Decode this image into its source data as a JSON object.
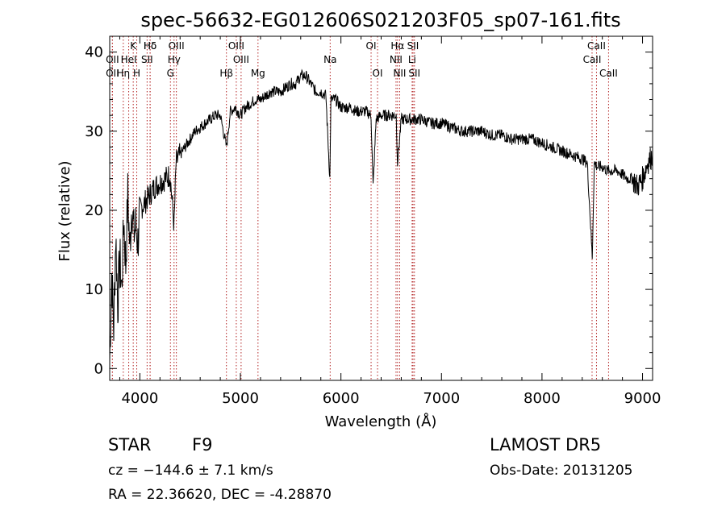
{
  "chart_data": {
    "type": "line",
    "title": "spec-56632-EG012606S021203F05_sp07-161.fits",
    "xlabel": "Wavelength (Å)",
    "ylabel": "Flux (relative)",
    "xlim": [
      3700,
      9100
    ],
    "ylim": [
      -1.5,
      42
    ],
    "xticks": [
      4000,
      5000,
      6000,
      7000,
      8000,
      9000
    ],
    "yticks": [
      0,
      10,
      20,
      30,
      40
    ],
    "grid": false,
    "line_color": "#000000",
    "marker_color": "#b22222",
    "series": [
      {
        "x": [
          3700,
          3720,
          3740,
          3760,
          3780,
          3800,
          3820,
          3840,
          3860,
          3880,
          3900,
          3920,
          3940,
          3960,
          3980,
          4000,
          4050,
          4100,
          4150,
          4200,
          4250,
          4300,
          4340,
          4360,
          4400,
          4450,
          4500,
          4550,
          4600,
          4650,
          4700,
          4750,
          4800,
          4861,
          4900,
          4950,
          5000,
          5050,
          5100,
          5150,
          5200,
          5250,
          5300,
          5350,
          5400,
          5450,
          5500,
          5550,
          5600,
          5650,
          5700,
          5750,
          5800,
          5850,
          5890,
          5900,
          5950,
          6000,
          6050,
          6100,
          6150,
          6200,
          6250,
          6300,
          6320,
          6350,
          6400,
          6450,
          6500,
          6550,
          6563,
          6600,
          6650,
          6700,
          6750,
          6800,
          6900,
          7000,
          7100,
          7200,
          7300,
          7400,
          7500,
          7600,
          7700,
          7800,
          7900,
          8000,
          8100,
          8200,
          8300,
          8400,
          8450,
          8480,
          8500,
          8520,
          8550,
          8600,
          8650,
          8700,
          8750,
          8800,
          8850,
          8900,
          8950,
          9000,
          9050,
          9100
        ],
        "y": [
          1,
          12,
          5,
          17,
          8,
          14,
          10,
          19,
          13,
          22,
          15,
          21,
          17,
          18,
          16,
          20,
          21,
          22,
          23,
          23.5,
          24,
          24.5,
          18,
          26,
          27,
          28,
          29,
          30,
          30.5,
          31,
          31.5,
          32,
          32,
          28,
          32.5,
          33,
          32,
          33,
          33.5,
          34,
          34,
          34.5,
          35,
          35,
          35,
          35.5,
          36,
          36,
          37,
          37,
          36,
          35,
          35,
          34.5,
          24,
          34,
          34,
          33,
          33,
          33,
          32.5,
          32.5,
          32.5,
          32,
          23,
          31.5,
          32,
          32,
          32,
          32,
          26,
          31.5,
          31.5,
          31.5,
          31.5,
          31.5,
          31,
          31,
          30.5,
          30,
          30,
          30,
          29.5,
          29.5,
          29,
          29,
          29,
          28.5,
          28,
          27.5,
          27,
          26.5,
          26,
          19,
          14,
          26,
          25.5,
          25.5,
          25,
          25,
          25,
          24.5,
          24,
          24,
          23,
          24,
          26,
          27
        ]
      }
    ],
    "lines": [
      {
        "labels": [
          "Hδ"
        ],
        "row": 0,
        "x": 4102
      },
      {
        "labels": [
          "K"
        ],
        "row": 0,
        "x": 3934
      },
      {
        "labels": [
          "Hδ"
        ],
        "row": 0,
        "x": 4102
      },
      {
        "labels": [
          "OIII"
        ],
        "row": 0,
        "x": 4363
      },
      {
        "labels": [
          "OIII"
        ],
        "row": 0,
        "x": 4959
      },
      {
        "labels": [
          "OI"
        ],
        "row": 0,
        "x": 6300
      },
      {
        "labels": [
          "Hα"
        ],
        "row": 0,
        "x": 6563
      },
      {
        "labels": [
          "SII"
        ],
        "row": 0,
        "x": 6717
      },
      {
        "labels": [
          "CaII"
        ],
        "row": 0,
        "x": 8542
      },
      {
        "labels": [
          "OII"
        ],
        "row": 1,
        "x": 3727
      },
      {
        "labels": [
          "HeI"
        ],
        "row": 1,
        "x": 3889
      },
      {
        "labels": [
          "SII"
        ],
        "row": 1,
        "x": 4072
      },
      {
        "labels": [
          "Hγ"
        ],
        "row": 1,
        "x": 4340
      },
      {
        "labels": [
          "OIII"
        ],
        "row": 1,
        "x": 5007
      },
      {
        "labels": [
          "Na"
        ],
        "row": 1,
        "x": 5893
      },
      {
        "labels": [
          "NII"
        ],
        "row": 1,
        "x": 6548
      },
      {
        "labels": [
          "Li"
        ],
        "row": 1,
        "x": 6708
      },
      {
        "labels": [
          "CaII"
        ],
        "row": 1,
        "x": 8498
      },
      {
        "labels": [
          "OII"
        ],
        "row": 2,
        "x": 3727
      },
      {
        "labels": [
          "Hη"
        ],
        "row": 2,
        "x": 3835
      },
      {
        "labels": [
          "H"
        ],
        "row": 2,
        "x": 3969
      },
      {
        "labels": [
          "G"
        ],
        "row": 2,
        "x": 4304
      },
      {
        "labels": [
          "Hβ"
        ],
        "row": 2,
        "x": 4861
      },
      {
        "labels": [
          "Mg"
        ],
        "row": 2,
        "x": 5175
      },
      {
        "labels": [
          "OI"
        ],
        "row": 2,
        "x": 6364
      },
      {
        "labels": [
          "NII"
        ],
        "row": 2,
        "x": 6584
      },
      {
        "labels": [
          "SII"
        ],
        "row": 2,
        "x": 6731
      },
      {
        "labels": [
          "CaII"
        ],
        "row": 2,
        "x": 8662
      }
    ]
  },
  "info": {
    "object_class": "STAR",
    "subclass": "F9",
    "survey": "LAMOST DR5",
    "cz": "cz = −144.6 ± 7.1 km/s",
    "obs_date": "Obs-Date: 20131205",
    "coords": "RA =  22.36620, DEC =  -4.28870"
  }
}
